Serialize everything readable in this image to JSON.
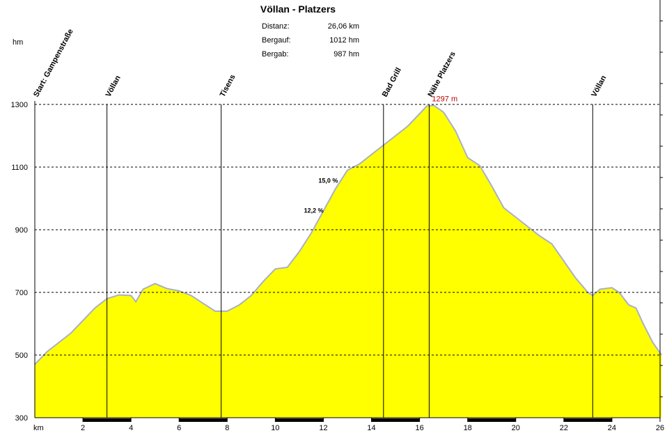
{
  "chart_data": {
    "type": "area",
    "title": "Völlan - Platzers",
    "stats": [
      {
        "label": "Distanz:",
        "value": "26,06 km"
      },
      {
        "label": "Bergauf:",
        "value": "1012 hm"
      },
      {
        "label": "Bergab:",
        "value": "987 hm"
      }
    ],
    "ylabel": "hm",
    "xlabel": "km",
    "xlim": [
      0,
      26
    ],
    "ylim": [
      300,
      1300
    ],
    "xticks": [
      2,
      4,
      6,
      8,
      10,
      12,
      14,
      16,
      18,
      20,
      22,
      24,
      26
    ],
    "yticks": [
      300,
      500,
      700,
      900,
      1100,
      1300
    ],
    "grid": "horizontal-dashed",
    "colors": {
      "fill": "#ffff00",
      "outline": "#a8b0c8",
      "peak_label": "#c00000"
    },
    "series": [
      {
        "x": [
          0,
          0.5,
          1,
          1.5,
          2,
          2.5,
          3,
          3.5,
          4,
          4.2,
          4.5,
          5,
          5.5,
          6,
          6.5,
          7,
          7.5,
          8,
          8.5,
          9,
          9.5,
          10,
          10.5,
          11,
          11.5,
          12,
          12.5,
          13,
          13.5,
          14,
          14.5,
          15,
          15.5,
          16,
          16.3,
          16.6,
          17,
          17.5,
          18,
          18.5,
          19,
          19.5,
          20,
          20.5,
          21,
          21.5,
          22,
          22.5,
          23,
          23.2,
          23.5,
          24,
          24.3,
          24.7,
          25,
          25.3,
          25.7,
          26.06
        ],
        "y": [
          470,
          510,
          540,
          570,
          610,
          650,
          680,
          692,
          690,
          670,
          710,
          728,
          712,
          705,
          690,
          665,
          640,
          640,
          660,
          690,
          735,
          775,
          780,
          830,
          890,
          960,
          1030,
          1090,
          1110,
          1140,
          1170,
          1200,
          1230,
          1270,
          1295,
          1297,
          1275,
          1215,
          1130,
          1105,
          1040,
          970,
          940,
          910,
          880,
          855,
          800,
          745,
          700,
          690,
          710,
          715,
          700,
          660,
          650,
          600,
          540,
          500
        ]
      }
    ],
    "waypoints": [
      {
        "label": "Start: Gampenstraße",
        "x": 0
      },
      {
        "label": "Völlan",
        "x": 3
      },
      {
        "label": "Tisens",
        "x": 7.75
      },
      {
        "label": "Bad Grill",
        "x": 14.5
      },
      {
        "label": "Nähe Platzers",
        "x": 16.4
      },
      {
        "label": "Völlan",
        "x": 23.2
      }
    ],
    "annotations": [
      {
        "text": "1297 m",
        "x": 16.4,
        "y": 1297
      },
      {
        "text": "15,0 %",
        "x": 12.2,
        "y": 1050
      },
      {
        "text": "12,2 %",
        "x": 11.6,
        "y": 955
      }
    ]
  }
}
